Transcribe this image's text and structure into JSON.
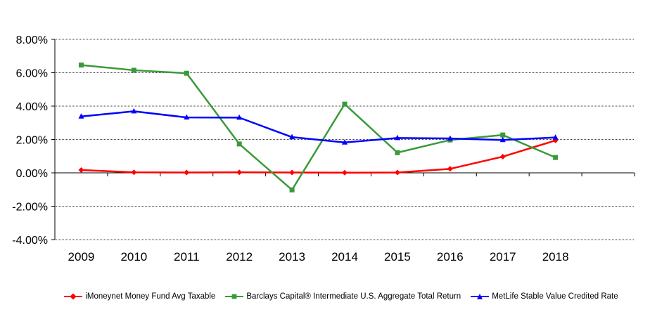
{
  "chart_data": {
    "type": "line",
    "categories": [
      "2009",
      "2010",
      "2011",
      "2012",
      "2013",
      "2014",
      "2015",
      "2016",
      "2017",
      "2018"
    ],
    "ylim": [
      -4,
      8
    ],
    "yticks": [
      "8.00%",
      "6.00%",
      "4.00%",
      "2.00%",
      "0.00%",
      "-2.00%",
      "-4.00%"
    ],
    "ytick_values": [
      8,
      6,
      4,
      2,
      0,
      -2,
      -4
    ],
    "grid": "horizontal",
    "legend_position": "bottom",
    "series": [
      {
        "name": "iMoneynet Money Fund Avg Taxable",
        "color": "#ff0000",
        "marker": "diamond",
        "values": [
          0.17,
          0.03,
          0.02,
          0.03,
          0.02,
          0.01,
          0.02,
          0.24,
          0.97,
          1.94
        ]
      },
      {
        "name": "Barclays Capital® Intermediate U.S. Aggregate Total Return",
        "color": "#3a9a3a",
        "marker": "square",
        "values": [
          6.46,
          6.15,
          5.97,
          1.73,
          -1.02,
          4.12,
          1.21,
          1.97,
          2.27,
          0.92
        ]
      },
      {
        "name": "MetLife Stable Value Credited Rate",
        "color": "#0000ff",
        "marker": "triangle",
        "values": [
          3.38,
          3.69,
          3.32,
          3.31,
          2.14,
          1.82,
          2.09,
          2.06,
          1.97,
          2.12
        ]
      }
    ]
  }
}
